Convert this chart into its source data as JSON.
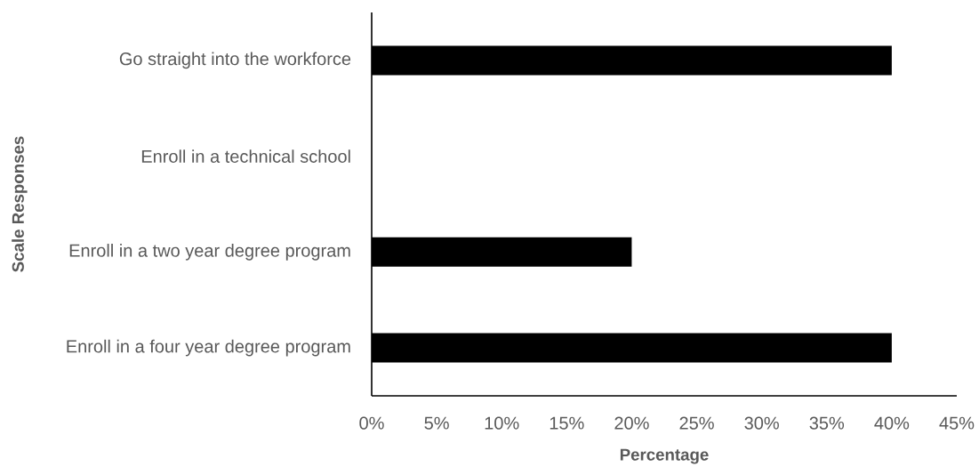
{
  "chart_data": {
    "type": "bar",
    "orientation": "horizontal",
    "xlabel": "Percentage",
    "ylabel": "Scale Responses",
    "categories": [
      "Go straight into the workforce",
      "Enroll in a technical school",
      "Enroll in a two year degree program",
      "Enroll in a four year degree program"
    ],
    "values": [
      40,
      0,
      20,
      40
    ],
    "color": "#000000",
    "xlim": [
      0,
      45
    ],
    "xticks": [
      {
        "value": 0,
        "label": "0%"
      },
      {
        "value": 5,
        "label": "5%"
      },
      {
        "value": 10,
        "label": "10%"
      },
      {
        "value": 15,
        "label": "15%"
      },
      {
        "value": 20,
        "label": "20%"
      },
      {
        "value": 25,
        "label": "25%"
      },
      {
        "value": 30,
        "label": "30%"
      },
      {
        "value": 35,
        "label": "35%"
      },
      {
        "value": 40,
        "label": "40%"
      },
      {
        "value": 45,
        "label": "45%"
      }
    ]
  }
}
